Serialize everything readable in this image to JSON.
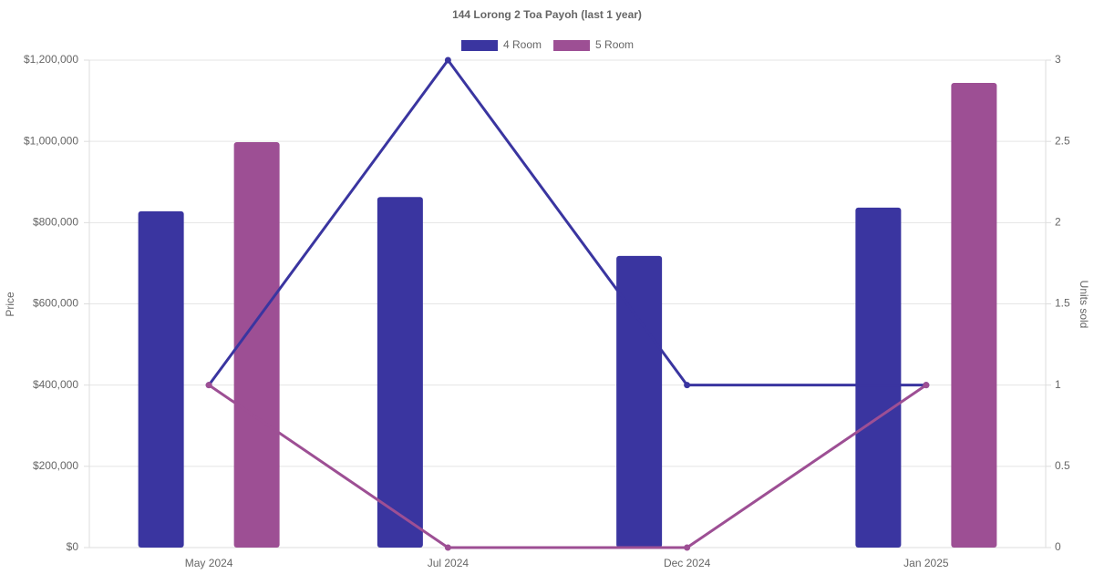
{
  "chart_data": {
    "type": "bar-line",
    "title": "144 Lorong 2 Toa Payoh (last 1 year)",
    "y_label": "Price",
    "y2_label": "Units sold",
    "categories": [
      "May 2024",
      "Jul 2024",
      "Dec 2024",
      "Jan 2025"
    ],
    "series": [
      {
        "name": "4 Room",
        "color": "#3a35a0",
        "values": [
          828000,
          863000,
          718000,
          837000
        ],
        "units_sold": [
          1,
          3,
          1,
          1
        ]
      },
      {
        "name": "5 Room",
        "color": "#9d4f94",
        "values": [
          998000,
          null,
          null,
          1144000
        ],
        "units_sold": [
          1,
          0,
          0,
          1
        ]
      }
    ],
    "ylim": [
      0,
      1200000
    ],
    "yticks": [
      {
        "value": 0,
        "label": "$0"
      },
      {
        "value": 200000,
        "label": "$200,000"
      },
      {
        "value": 400000,
        "label": "$400,000"
      },
      {
        "value": 600000,
        "label": "$600,000"
      },
      {
        "value": 800000,
        "label": "$800,000"
      },
      {
        "value": 1000000,
        "label": "$1,000,000"
      },
      {
        "value": 1200000,
        "label": "$1,200,000"
      }
    ],
    "y2lim": [
      0,
      3
    ],
    "y2ticks": [
      0,
      0.5,
      1,
      1.5,
      2,
      2.5,
      3
    ],
    "grid": true,
    "legend": "top"
  }
}
